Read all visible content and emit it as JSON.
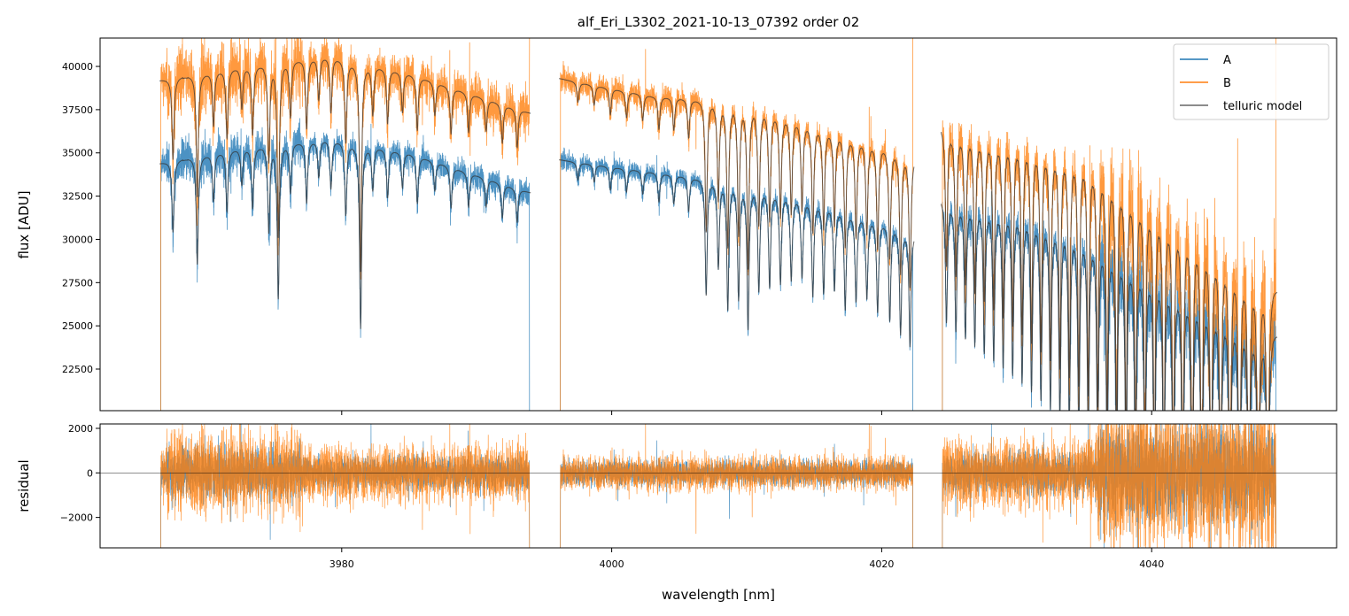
{
  "chart_data": {
    "type": "line",
    "title": "alf_Eri_L3302_2021-10-13_07392  order 02",
    "xlabel": "wavelength [nm]",
    "panels": [
      {
        "name": "flux",
        "ylabel": "flux [ADU]",
        "ylim": [
          20095,
          41640
        ],
        "yticks": [
          22500,
          25000,
          27500,
          30000,
          32500,
          35000,
          37500,
          40000
        ],
        "ytick_labels": [
          "22500",
          "25000",
          "27500",
          "30000",
          "32500",
          "35000",
          "37500",
          "40000"
        ]
      },
      {
        "name": "residual",
        "ylabel": "residual",
        "ylim": [
          -3366,
          2198
        ],
        "yticks": [
          -2000,
          0,
          2000
        ],
        "ytick_labels": [
          "−2000",
          "0",
          "2000"
        ]
      }
    ],
    "xlim": [
      3962.1,
      4053.7
    ],
    "xticks": [
      3980,
      4000,
      4020,
      4040
    ],
    "xtick_labels": [
      "3980",
      "4000",
      "4020",
      "4040"
    ],
    "legend": {
      "placement": "top-right",
      "entries": [
        "A",
        "B",
        "telluric model"
      ]
    },
    "colors": {
      "A": "#1f77b4",
      "B": "#ff7f0e",
      "model": "#333333"
    },
    "segments": [
      {
        "range": [
          3966.5,
          3994.0
        ],
        "continuum_A": [
          [
            3966.5,
            34400
          ],
          [
            3972,
            35200
          ],
          [
            3979,
            35800
          ],
          [
            3985,
            35000
          ],
          [
            3994,
            32700
          ]
        ],
        "continuum_B": [
          [
            3966.5,
            39200
          ],
          [
            3972,
            39900
          ],
          [
            3979,
            40600
          ],
          [
            3985,
            39600
          ],
          [
            3994,
            37300
          ]
        ],
        "noise_A": 550,
        "noise_B": 900
      },
      {
        "range": [
          3996.1,
          4022.4
        ],
        "continuum_A": [
          [
            3996.1,
            34600
          ],
          [
            4003,
            33900
          ],
          [
            4010,
            33200
          ],
          [
            4016,
            32000
          ],
          [
            4022.4,
            30500
          ]
        ],
        "continuum_B": [
          [
            3996.1,
            39300
          ],
          [
            4003,
            38300
          ],
          [
            4010,
            37900
          ],
          [
            4016,
            36400
          ],
          [
            4022.4,
            34900
          ]
        ],
        "noise_A": 400,
        "noise_B": 550
      },
      {
        "range": [
          4024.4,
          4049.3
        ],
        "continuum_A": [
          [
            4024.4,
            32400
          ],
          [
            4030,
            32000
          ],
          [
            4035,
            30700
          ],
          [
            4040,
            28500
          ],
          [
            4045,
            26500
          ],
          [
            4049.3,
            24600
          ]
        ],
        "continuum_B": [
          [
            4024.4,
            36600
          ],
          [
            4030,
            36100
          ],
          [
            4035,
            35300
          ],
          [
            4040,
            32500
          ],
          [
            4045,
            29800
          ],
          [
            4049.3,
            27200
          ]
        ],
        "noise_A": 700,
        "noise_B": 1100
      }
    ],
    "telluric_lines": [
      [
        3967.5,
        0.12
      ],
      [
        3969.3,
        0.18
      ],
      [
        3970.5,
        0.08
      ],
      [
        3971.5,
        0.1
      ],
      [
        3972.6,
        0.06
      ],
      [
        3973.4,
        0.1
      ],
      [
        3974.6,
        0.14
      ],
      [
        3975.3,
        0.25
      ],
      [
        3976.2,
        0.08
      ],
      [
        3977.4,
        0.1
      ],
      [
        3978.3,
        0.06
      ],
      [
        3979.2,
        0.08
      ],
      [
        3980.3,
        0.12
      ],
      [
        3981.4,
        0.3
      ],
      [
        3982.3,
        0.07
      ],
      [
        3983.4,
        0.08
      ],
      [
        3984.5,
        0.06
      ],
      [
        3985.6,
        0.08
      ],
      [
        3986.9,
        0.05
      ],
      [
        3988.1,
        0.07
      ],
      [
        3989.4,
        0.06
      ],
      [
        3990.7,
        0.05
      ],
      [
        3991.9,
        0.06
      ],
      [
        3993.0,
        0.06
      ],
      [
        3997.5,
        0.03
      ],
      [
        3998.7,
        0.03
      ],
      [
        3999.9,
        0.04
      ],
      [
        4001.1,
        0.04
      ],
      [
        4002.3,
        0.04
      ],
      [
        4003.5,
        0.05
      ],
      [
        4004.6,
        0.05
      ],
      [
        4005.7,
        0.06
      ],
      [
        4007.0,
        0.2
      ],
      [
        4007.9,
        0.15
      ],
      [
        4008.6,
        0.22
      ],
      [
        4009.4,
        0.2
      ],
      [
        4010.1,
        0.25
      ],
      [
        4010.9,
        0.18
      ],
      [
        4011.7,
        0.17
      ],
      [
        4012.5,
        0.16
      ],
      [
        4013.3,
        0.15
      ],
      [
        4014.1,
        0.14
      ],
      [
        4014.9,
        0.17
      ],
      [
        4015.7,
        0.16
      ],
      [
        4016.5,
        0.15
      ],
      [
        4017.3,
        0.18
      ],
      [
        4018.1,
        0.16
      ],
      [
        4018.9,
        0.15
      ],
      [
        4019.7,
        0.17
      ],
      [
        4020.6,
        0.18
      ],
      [
        4021.4,
        0.2
      ],
      [
        4022.1,
        0.22
      ]
    ],
    "telluric_line_series": {
      "start": 4024.8,
      "step": 0.7,
      "count": 35,
      "depth_start": 0.22,
      "depth_end": 0.62
    }
  }
}
